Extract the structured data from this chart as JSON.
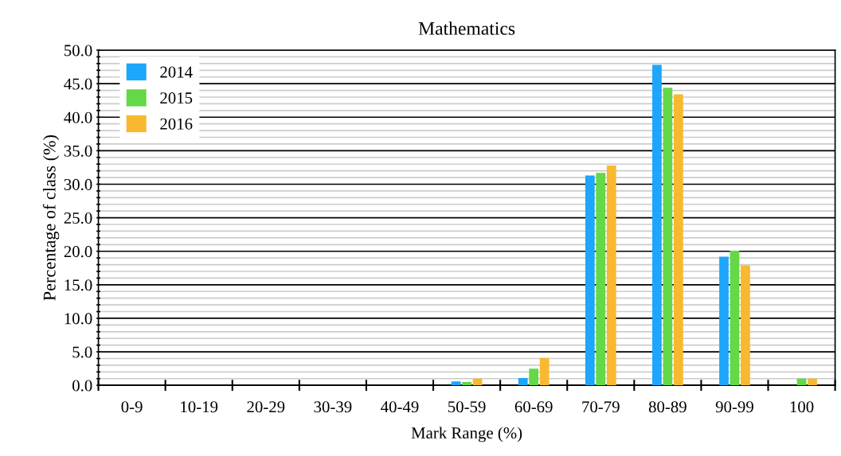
{
  "chart_data": {
    "type": "bar",
    "title": "Mathematics",
    "xlabel": "Mark Range (%)",
    "ylabel": "Percentage of class (%)",
    "categories": [
      "0-9",
      "10-19",
      "20-29",
      "30-39",
      "40-49",
      "50-59",
      "60-69",
      "70-79",
      "80-89",
      "90-99",
      "100"
    ],
    "series": [
      {
        "name": "2014",
        "color": "#1ea5fc",
        "values": [
          0,
          0,
          0,
          0,
          0,
          0.6,
          1.1,
          31.3,
          47.8,
          19.2,
          0
        ]
      },
      {
        "name": "2015",
        "color": "#64d846",
        "values": [
          0,
          0,
          0,
          0,
          0,
          0.5,
          2.5,
          31.7,
          44.4,
          20.1,
          1.0
        ]
      },
      {
        "name": "2016",
        "color": "#f8b830",
        "values": [
          0,
          0,
          0,
          0,
          0,
          1.0,
          4.1,
          32.8,
          43.4,
          17.9,
          1.0
        ]
      }
    ],
    "ylim": [
      0,
      50
    ],
    "yticks": [
      {
        "value": 0,
        "label": "0.0"
      },
      {
        "value": 1,
        "label": null
      },
      {
        "value": 2,
        "label": null
      },
      {
        "value": 3,
        "label": null
      },
      {
        "value": 4,
        "label": null
      },
      {
        "value": 5,
        "label": "5.0"
      },
      {
        "value": 6,
        "label": null
      },
      {
        "value": 7,
        "label": null
      },
      {
        "value": 8,
        "label": null
      },
      {
        "value": 9,
        "label": null
      },
      {
        "value": 10,
        "label": "10.0"
      },
      {
        "value": 11,
        "label": null
      },
      {
        "value": 12,
        "label": null
      },
      {
        "value": 13,
        "label": null
      },
      {
        "value": 14,
        "label": null
      },
      {
        "value": 15,
        "label": "15.0"
      },
      {
        "value": 16,
        "label": null
      },
      {
        "value": 17,
        "label": null
      },
      {
        "value": 18,
        "label": null
      },
      {
        "value": 19,
        "label": null
      },
      {
        "value": 20,
        "label": "20.0"
      },
      {
        "value": 21,
        "label": null
      },
      {
        "value": 22,
        "label": null
      },
      {
        "value": 23,
        "label": null
      },
      {
        "value": 24,
        "label": null
      },
      {
        "value": 25,
        "label": "25.0"
      },
      {
        "value": 26,
        "label": null
      },
      {
        "value": 27,
        "label": null
      },
      {
        "value": 28,
        "label": null
      },
      {
        "value": 29,
        "label": null
      },
      {
        "value": 30,
        "label": "30.0"
      },
      {
        "value": 31,
        "label": null
      },
      {
        "value": 32,
        "label": null
      },
      {
        "value": 33,
        "label": null
      },
      {
        "value": 34,
        "label": null
      },
      {
        "value": 35,
        "label": "35.0"
      },
      {
        "value": 36,
        "label": null
      },
      {
        "value": 37,
        "label": null
      },
      {
        "value": 38,
        "label": null
      },
      {
        "value": 39,
        "label": null
      },
      {
        "value": 40,
        "label": "40.0"
      },
      {
        "value": 41,
        "label": null
      },
      {
        "value": 42,
        "label": null
      },
      {
        "value": 43,
        "label": null
      },
      {
        "value": 44,
        "label": null
      },
      {
        "value": 45,
        "label": "45.0"
      },
      {
        "value": 46,
        "label": null
      },
      {
        "value": 47,
        "label": null
      },
      {
        "value": 48,
        "label": null
      },
      {
        "value": 49,
        "label": null
      },
      {
        "value": 50,
        "label": "50.0"
      }
    ],
    "grid": "y",
    "legend": "top left"
  }
}
